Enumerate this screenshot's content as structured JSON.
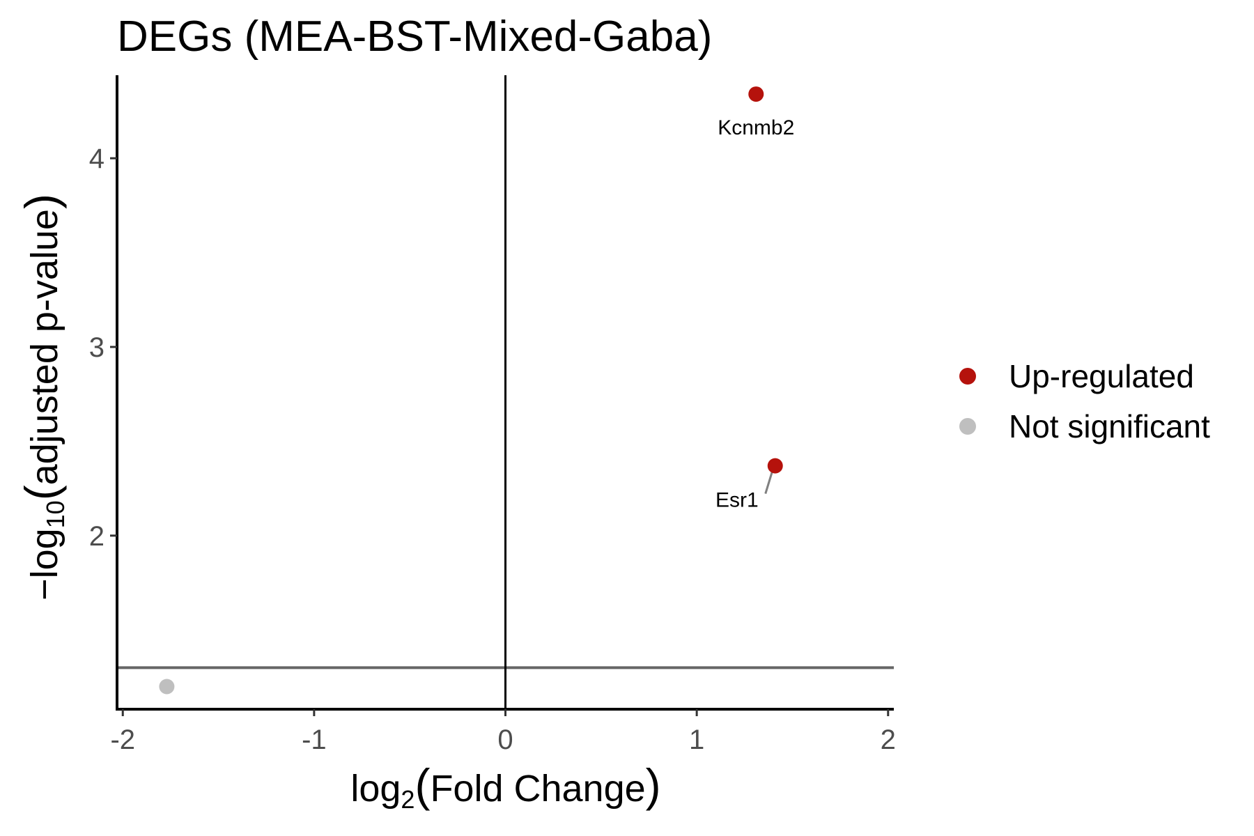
{
  "chart_data": {
    "type": "scatter",
    "title": "DEGs (MEA-BST-Mixed-Gaba)",
    "xlabel": {
      "prefix": "log",
      "sub": "2",
      "body": "Fold Change"
    },
    "ylabel": {
      "prefix": "−log",
      "sub": "10",
      "body": "adjusted p-value"
    },
    "xlim": [
      -2.03,
      2.03
    ],
    "ylim": [
      1.08,
      4.44
    ],
    "xticks": [
      -2,
      -1,
      0,
      1,
      2
    ],
    "xtick_labels": [
      "-2",
      "-1",
      "0",
      "1",
      "2"
    ],
    "yticks": [
      2,
      3,
      4
    ],
    "ytick_labels": [
      "2",
      "3",
      "4"
    ],
    "reference_lines": {
      "vertical_x": 0,
      "horizontal_y": 1.3
    },
    "grid": false,
    "legend_position": "right",
    "series": [
      {
        "name": "Up-regulated",
        "color": "#b5120c",
        "points": [
          {
            "x": 1.31,
            "y": 4.34,
            "label": "Kcnmb2"
          },
          {
            "x": 1.41,
            "y": 2.37,
            "label": "Esr1"
          }
        ]
      },
      {
        "name": "Not significant",
        "color": "#bfbfbf",
        "points": [
          {
            "x": -1.77,
            "y": 1.2,
            "label": ""
          }
        ]
      }
    ]
  }
}
